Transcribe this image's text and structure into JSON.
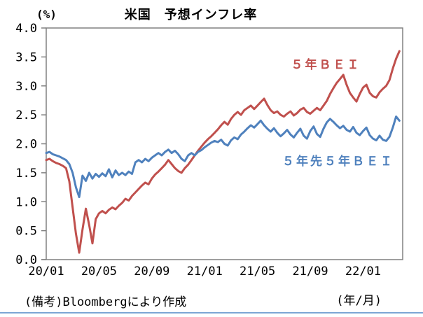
{
  "note": "(備考)Bloombergにより作成",
  "colors": {
    "red_series": "#C0504D",
    "blue_series": "#4F81BD",
    "axis": "#808080",
    "divider": "#7CA6D4",
    "text": "#000000"
  },
  "chart_data": {
    "type": "line",
    "title": "米国　予想インフレ率",
    "ylabel": "(%)",
    "xlabel": "(年/月)",
    "ylim": [
      0.0,
      4.0
    ],
    "ytick_step": 0.5,
    "ytick_labels": [
      "4.0",
      "3.5",
      "3.0",
      "2.5",
      "2.0",
      "1.5",
      "1.0",
      "0.5",
      "0.0"
    ],
    "xtick_labels": [
      "20/01",
      "20/05",
      "20/09",
      "21/01",
      "21/05",
      "21/09",
      "22/01"
    ],
    "xtick_month_positions": [
      0,
      4,
      8,
      12,
      16,
      20,
      24
    ],
    "x_months_total": 27,
    "x_start_month": 0,
    "x_step_month": 0.25,
    "grid": false,
    "legend": "inline-labels",
    "series": [
      {
        "name": "５年ＢＥＩ",
        "color": "#C0504D",
        "values": [
          1.72,
          1.74,
          1.7,
          1.67,
          1.65,
          1.62,
          1.58,
          1.35,
          0.9,
          0.45,
          0.12,
          0.52,
          0.88,
          0.6,
          0.28,
          0.7,
          0.8,
          0.84,
          0.8,
          0.86,
          0.9,
          0.87,
          0.93,
          0.98,
          1.05,
          1.02,
          1.1,
          1.16,
          1.22,
          1.28,
          1.33,
          1.3,
          1.4,
          1.47,
          1.52,
          1.58,
          1.64,
          1.72,
          1.65,
          1.58,
          1.53,
          1.5,
          1.58,
          1.64,
          1.72,
          1.8,
          1.88,
          1.95,
          2.02,
          2.08,
          2.13,
          2.19,
          2.25,
          2.32,
          2.38,
          2.33,
          2.43,
          2.5,
          2.55,
          2.5,
          2.58,
          2.62,
          2.66,
          2.6,
          2.66,
          2.72,
          2.78,
          2.67,
          2.58,
          2.53,
          2.56,
          2.5,
          2.47,
          2.52,
          2.56,
          2.49,
          2.53,
          2.59,
          2.62,
          2.55,
          2.52,
          2.57,
          2.62,
          2.58,
          2.66,
          2.74,
          2.86,
          2.96,
          3.05,
          3.12,
          3.19,
          3.02,
          2.88,
          2.8,
          2.73,
          2.86,
          2.97,
          3.02,
          2.88,
          2.82,
          2.8,
          2.89,
          2.95,
          3.0,
          3.1,
          3.3,
          3.47,
          3.6
        ]
      },
      {
        "name": "５年先５年ＢＥＩ",
        "color": "#4F81BD",
        "values": [
          1.84,
          1.86,
          1.82,
          1.8,
          1.78,
          1.75,
          1.72,
          1.65,
          1.5,
          1.25,
          1.08,
          1.45,
          1.36,
          1.5,
          1.4,
          1.48,
          1.43,
          1.49,
          1.44,
          1.56,
          1.42,
          1.54,
          1.46,
          1.5,
          1.46,
          1.52,
          1.48,
          1.68,
          1.72,
          1.68,
          1.74,
          1.7,
          1.76,
          1.8,
          1.84,
          1.8,
          1.86,
          1.9,
          1.84,
          1.88,
          1.82,
          1.74,
          1.7,
          1.8,
          1.84,
          1.8,
          1.86,
          1.89,
          1.94,
          1.98,
          2.02,
          2.05,
          2.03,
          2.07,
          2.0,
          1.97,
          2.06,
          2.11,
          2.08,
          2.16,
          2.21,
          2.27,
          2.32,
          2.28,
          2.34,
          2.4,
          2.32,
          2.26,
          2.21,
          2.27,
          2.19,
          2.13,
          2.18,
          2.24,
          2.16,
          2.11,
          2.19,
          2.26,
          2.14,
          2.09,
          2.22,
          2.3,
          2.17,
          2.12,
          2.26,
          2.37,
          2.43,
          2.38,
          2.32,
          2.27,
          2.31,
          2.24,
          2.21,
          2.29,
          2.19,
          2.15,
          2.22,
          2.28,
          2.15,
          2.09,
          2.06,
          2.14,
          2.07,
          2.05,
          2.12,
          2.28,
          2.47,
          2.4
        ]
      }
    ]
  }
}
